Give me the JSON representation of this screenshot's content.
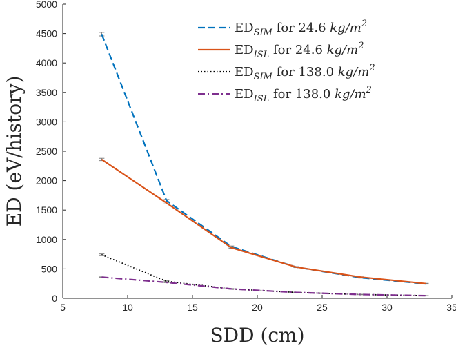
{
  "chart_data": {
    "type": "line",
    "xlabel": "SDD (cm)",
    "ylabel": "ED (eV/history)",
    "xlim": [
      5,
      35
    ],
    "ylim": [
      0,
      5000
    ],
    "xticks": [
      5,
      10,
      15,
      20,
      25,
      30,
      35
    ],
    "yticks": [
      0,
      500,
      1000,
      1500,
      2000,
      2500,
      3000,
      3500,
      4000,
      4500,
      5000
    ],
    "x_tick_labels": [
      "5",
      "10",
      "15",
      "20",
      "25",
      "30",
      "35"
    ],
    "y_tick_labels": [
      "0",
      "500",
      "1000",
      "1500",
      "2000",
      "2500",
      "3000",
      "3500",
      "4000",
      "4500",
      "5000"
    ],
    "grid": false,
    "legend_position": "top-right",
    "x": [
      8,
      13,
      18,
      23,
      28,
      33
    ],
    "series": [
      {
        "name": "ED_SIM for 24.6 kg/m^2",
        "legend_main": "ED",
        "legend_sub": "SIM",
        "legend_rest": " for 24.6 ",
        "legend_unit": "kg/m",
        "legend_sup": "2",
        "style": "dashed",
        "color": "#0072BD",
        "values": [
          4490,
          1660,
          880,
          530,
          350,
          245
        ],
        "error": [
          30,
          20,
          10,
          8,
          6,
          5
        ]
      },
      {
        "name": "ED_ISL for 24.6 kg/m^2",
        "legend_main": "ED",
        "legend_sub": "ISL",
        "legend_rest": " for 24.6 ",
        "legend_unit": "kg/m",
        "legend_sup": "2",
        "style": "solid",
        "color": "#D95319",
        "values": [
          2360,
          1620,
          860,
          530,
          360,
          250
        ],
        "error": [
          20,
          15,
          10,
          8,
          6,
          5
        ]
      },
      {
        "name": "ED_SIM for 138.0 kg/m^2",
        "legend_main": "ED",
        "legend_sub": "SIM",
        "legend_rest": " for 138.0 ",
        "legend_unit": "kg/m",
        "legend_sup": "2",
        "style": "dotted",
        "color": "#000000",
        "values": [
          740,
          290,
          160,
          100,
          65,
          45
        ],
        "error": [
          15,
          8,
          5,
          4,
          3,
          2
        ]
      },
      {
        "name": "ED_ISL for 138.0 kg/m^2",
        "legend_main": "ED",
        "legend_sub": "ISL",
        "legend_rest": " for 138.0 ",
        "legend_unit": "kg/m",
        "legend_sup": "2",
        "style": "dashdot",
        "color": "#7E2F8E",
        "values": [
          360,
          270,
          160,
          100,
          65,
          45
        ],
        "error": [
          5,
          4,
          3,
          2,
          2,
          2
        ]
      }
    ]
  }
}
